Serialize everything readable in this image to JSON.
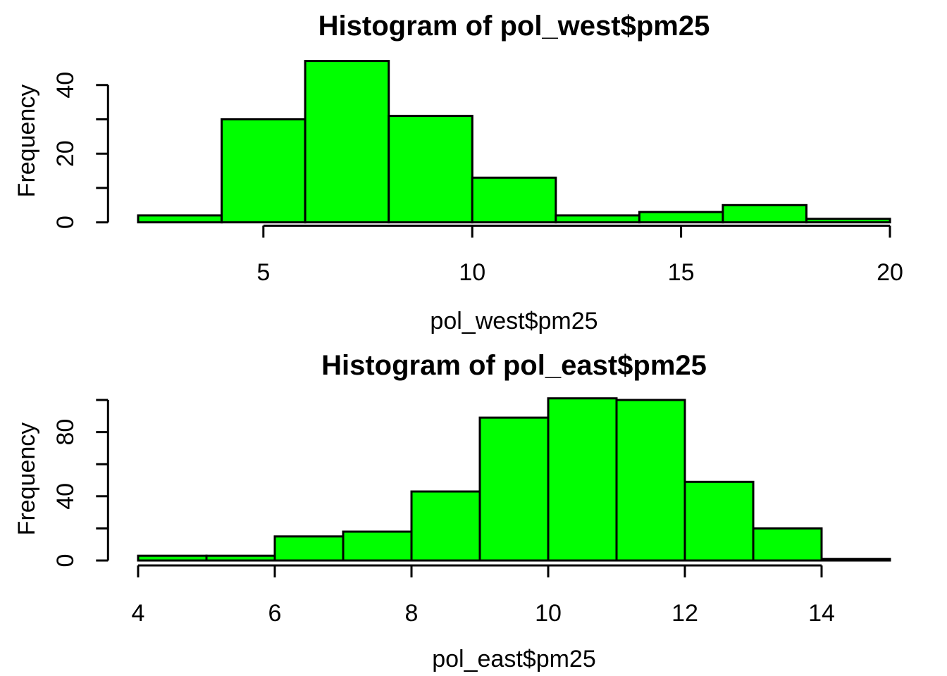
{
  "page": {
    "background": "#FFFFFF",
    "text_color": "#000000"
  },
  "chart_data": [
    {
      "type": "bar",
      "subtype": "histogram",
      "title": "Histogram of pol_west$pm25",
      "xlabel": "pol_west$pm25",
      "ylabel": "Frequency",
      "bin_breaks": [
        2,
        4,
        6,
        8,
        10,
        12,
        14,
        16,
        18,
        20
      ],
      "counts": [
        2,
        30,
        47,
        31,
        13,
        2,
        3,
        5,
        1
      ],
      "xlim": [
        2,
        20
      ],
      "ylim": [
        0,
        47
      ],
      "grid": false,
      "legend": null,
      "x_ticks": [
        {
          "v": 5,
          "label": "5"
        },
        {
          "v": 10,
          "label": "10"
        },
        {
          "v": 15,
          "label": "15"
        },
        {
          "v": 20,
          "label": "20"
        }
      ],
      "y_ticks": [
        {
          "v": 0,
          "label": "0"
        },
        {
          "v": 10,
          "label": ""
        },
        {
          "v": 20,
          "label": "20"
        },
        {
          "v": 30,
          "label": ""
        },
        {
          "v": 40,
          "label": "40"
        }
      ],
      "bar_fill": "#00FF00",
      "bar_stroke": "#000000",
      "axis_color": "#000000"
    },
    {
      "type": "bar",
      "subtype": "histogram",
      "title": "Histogram of pol_east$pm25",
      "xlabel": "pol_east$pm25",
      "ylabel": "Frequency",
      "bin_breaks": [
        4,
        5,
        6,
        7,
        8,
        9,
        10,
        11,
        12,
        13,
        14,
        15
      ],
      "counts": [
        3,
        3,
        15,
        18,
        43,
        89,
        101,
        100,
        49,
        20,
        1
      ],
      "xlim": [
        4,
        15
      ],
      "ylim": [
        0,
        101
      ],
      "grid": false,
      "legend": null,
      "x_ticks": [
        {
          "v": 4,
          "label": "4"
        },
        {
          "v": 6,
          "label": "6"
        },
        {
          "v": 8,
          "label": "8"
        },
        {
          "v": 10,
          "label": "10"
        },
        {
          "v": 12,
          "label": "12"
        },
        {
          "v": 14,
          "label": "14"
        }
      ],
      "y_ticks": [
        {
          "v": 0,
          "label": "0"
        },
        {
          "v": 20,
          "label": ""
        },
        {
          "v": 40,
          "label": "40"
        },
        {
          "v": 60,
          "label": ""
        },
        {
          "v": 80,
          "label": "80"
        },
        {
          "v": 100,
          "label": ""
        }
      ],
      "bar_fill": "#00FF00",
      "bar_stroke": "#000000",
      "axis_color": "#000000"
    }
  ]
}
